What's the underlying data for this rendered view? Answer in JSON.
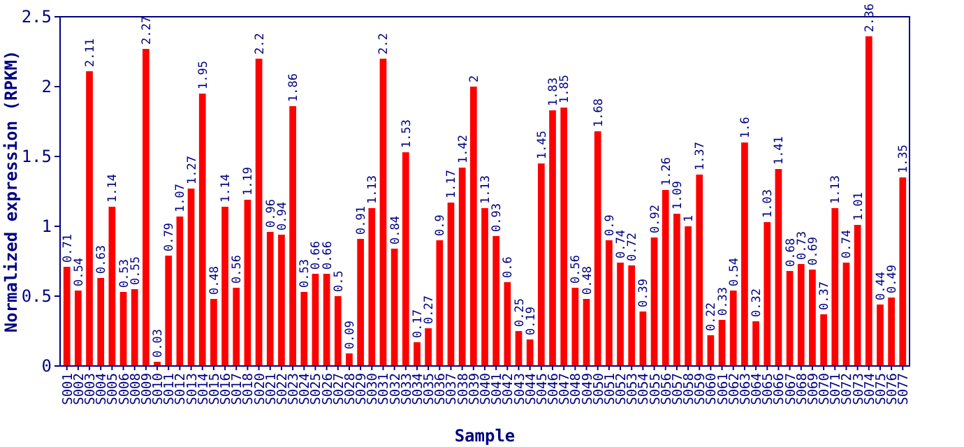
{
  "chart_data": {
    "type": "bar",
    "xlabel": "Sample",
    "ylabel": "Normalized expression (RPKM)",
    "categories": [
      "S001",
      "S002",
      "S003",
      "S004",
      "S005",
      "S006",
      "S008",
      "S009",
      "S010",
      "S011",
      "S012",
      "S013",
      "S014",
      "S015",
      "S016",
      "S017",
      "S018",
      "S020",
      "S021",
      "S022",
      "S023",
      "S024",
      "S025",
      "S026",
      "S027",
      "S028",
      "S029",
      "S030",
      "S031",
      "S032",
      "S033",
      "S034",
      "S035",
      "S036",
      "S037",
      "S038",
      "S039",
      "S040",
      "S041",
      "S042",
      "S043",
      "S044",
      "S045",
      "S046",
      "S047",
      "S048",
      "S049",
      "S050",
      "S051",
      "S052",
      "S053",
      "S054",
      "S055",
      "S056",
      "S057",
      "S058",
      "S059",
      "S060",
      "S061",
      "S062",
      "S063",
      "S064",
      "S065",
      "S066",
      "S067",
      "S068",
      "S069",
      "S070",
      "S071",
      "S072",
      "S073",
      "S074",
      "S075",
      "S076",
      "S077"
    ],
    "values": [
      0.71,
      0.54,
      2.11,
      0.63,
      1.14,
      0.53,
      0.55,
      2.27,
      0.03,
      0.79,
      1.07,
      1.27,
      1.95,
      0.48,
      1.14,
      0.56,
      1.19,
      2.2,
      0.96,
      0.94,
      1.86,
      0.53,
      0.66,
      0.66,
      0.5,
      0.09,
      0.91,
      1.13,
      2.2,
      0.84,
      1.53,
      0.17,
      0.27,
      0.9,
      1.17,
      1.42,
      2,
      1.13,
      0.93,
      0.6,
      0.25,
      0.19,
      1.45,
      1.83,
      1.85,
      0.56,
      0.48,
      1.68,
      0.9,
      0.74,
      0.72,
      0.39,
      0.92,
      1.26,
      1.09,
      1,
      1.37,
      0.22,
      0.33,
      0.54,
      1.6,
      0.32,
      1.03,
      1.41,
      0.68,
      0.73,
      0.69,
      0.37,
      1.13,
      0.74,
      1.01,
      2.36,
      0.44,
      0.49,
      1.35
    ],
    "color": "#ff0000",
    "ylim": [
      0,
      2.5
    ],
    "yticks": [
      0,
      0.5,
      1,
      1.5,
      2,
      2.5
    ],
    "grid": false,
    "data_labels": true
  }
}
